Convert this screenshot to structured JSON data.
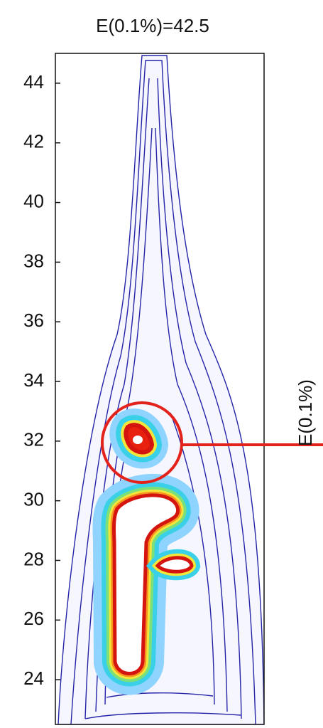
{
  "chart_data": {
    "type": "contour",
    "title": "E(0.1%)=42.5",
    "y_label": "E(0.1%)",
    "ylim": [
      22.5,
      45
    ],
    "yticks": [
      24,
      26,
      28,
      30,
      32,
      34,
      36,
      38,
      40,
      42,
      44
    ]
  }
}
